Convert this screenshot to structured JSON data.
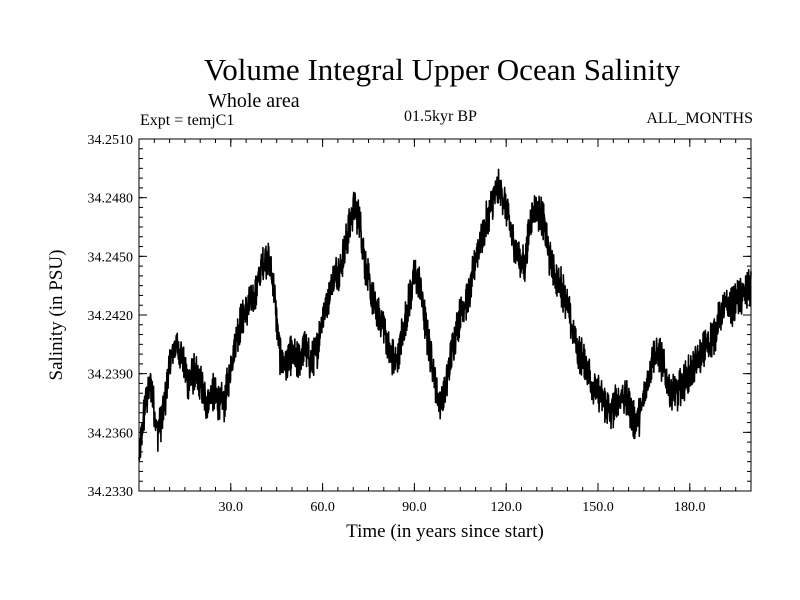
{
  "header": {
    "title": "Volume Integral Upper Ocean Salinity",
    "subtitle": "Whole area",
    "experiment": "Expt = temjC1",
    "period": "01.5kyr BP",
    "months": "ALL_MONTHS"
  },
  "chart_data": {
    "type": "line",
    "title": "Volume Integral Upper Ocean Salinity",
    "xlabel": "Time (in years since start)",
    "ylabel": "Salinity (in PSU)",
    "xlim": [
      0,
      200
    ],
    "ylim": [
      34.233,
      34.251
    ],
    "xticks": [
      30,
      60,
      90,
      120,
      150,
      180
    ],
    "xtick_labels": [
      "30.0",
      "60.0",
      "90.0",
      "120.0",
      "150.0",
      "180.0"
    ],
    "yticks": [
      34.233,
      34.236,
      34.239,
      34.242,
      34.245,
      34.248,
      34.251
    ],
    "ytick_labels": [
      "34.2330",
      "34.2360",
      "34.2390",
      "34.2420",
      "34.2450",
      "34.2480",
      "34.2510"
    ],
    "grid": false,
    "series": [
      {
        "name": "Salinity",
        "color": "#000000",
        "x": [
          0,
          2,
          4,
          6,
          8,
          10,
          12,
          14,
          16,
          18,
          20,
          22,
          24,
          26,
          28,
          30,
          32,
          34,
          36,
          38,
          40,
          42,
          44,
          46,
          48,
          50,
          52,
          54,
          56,
          58,
          60,
          62,
          64,
          66,
          68,
          70,
          72,
          74,
          76,
          78,
          80,
          82,
          84,
          86,
          88,
          90,
          92,
          94,
          96,
          98,
          100,
          102,
          104,
          106,
          108,
          110,
          112,
          114,
          116,
          118,
          120,
          122,
          124,
          126,
          128,
          130,
          132,
          134,
          136,
          138,
          140,
          142,
          144,
          146,
          148,
          150,
          152,
          154,
          156,
          158,
          160,
          162,
          164,
          166,
          168,
          170,
          172,
          174,
          176,
          178,
          180,
          182,
          184,
          186,
          188,
          190,
          192,
          194,
          196,
          198,
          200
        ],
        "y": [
          34.2345,
          34.2375,
          34.2385,
          34.236,
          34.237,
          34.2395,
          34.2405,
          34.24,
          34.2385,
          34.239,
          34.2385,
          34.2375,
          34.238,
          34.2375,
          34.2375,
          34.2395,
          34.241,
          34.242,
          34.2425,
          34.243,
          34.2445,
          34.245,
          34.2435,
          34.24,
          34.2395,
          34.24,
          34.2395,
          34.2405,
          34.2395,
          34.24,
          34.242,
          34.243,
          34.244,
          34.2445,
          34.246,
          34.2475,
          34.247,
          34.2445,
          34.243,
          34.242,
          34.2415,
          34.24,
          34.2395,
          34.241,
          34.2425,
          34.244,
          34.2435,
          34.241,
          34.2395,
          34.2375,
          34.238,
          34.24,
          34.2415,
          34.2425,
          34.243,
          34.245,
          34.246,
          34.247,
          34.248,
          34.2485,
          34.2475,
          34.246,
          34.245,
          34.2445,
          34.247,
          34.2475,
          34.247,
          34.245,
          34.244,
          34.2435,
          34.2425,
          34.241,
          34.24,
          34.2395,
          34.2385,
          34.238,
          34.2375,
          34.237,
          34.2375,
          34.238,
          34.2375,
          34.2365,
          34.237,
          34.2385,
          34.24,
          34.24,
          34.239,
          34.238,
          34.238,
          34.2385,
          34.239,
          34.2395,
          34.24,
          34.2405,
          34.241,
          34.242,
          34.2425,
          34.2425,
          34.243,
          34.243,
          34.2435
        ]
      }
    ]
  }
}
